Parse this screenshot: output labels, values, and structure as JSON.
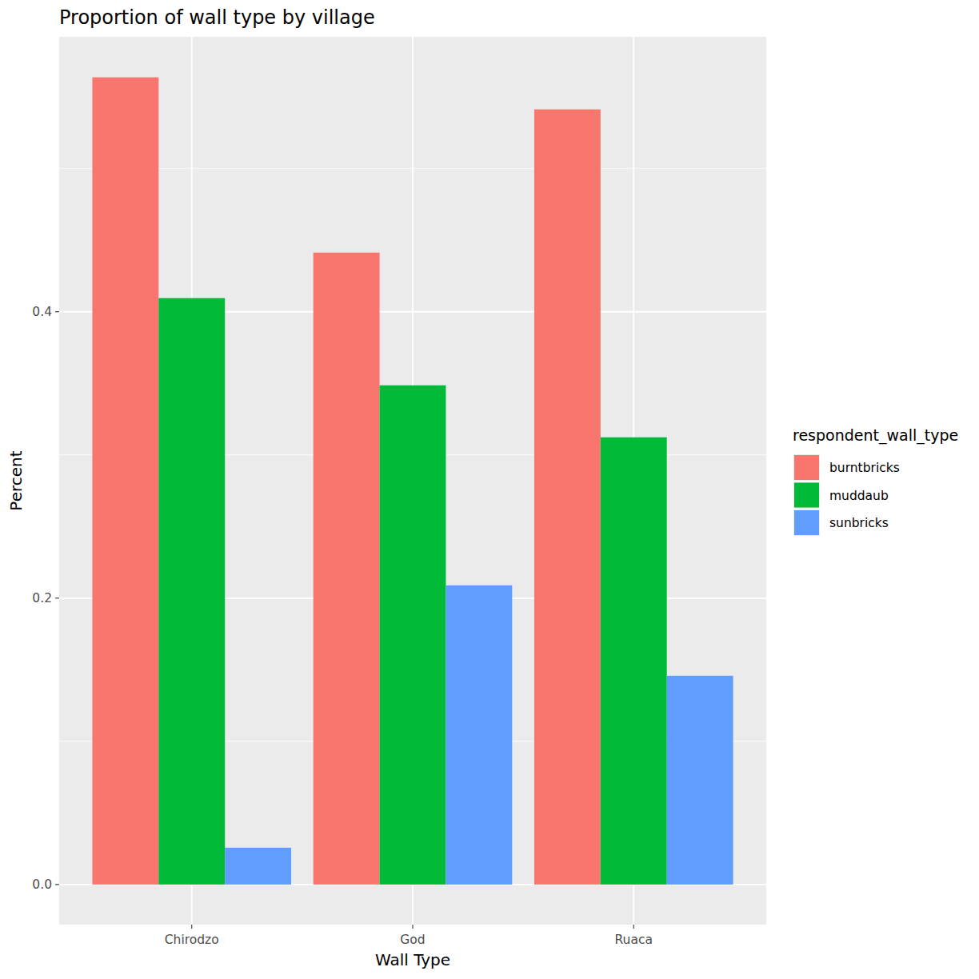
{
  "chart_data": {
    "type": "bar",
    "title": "Proportion of wall type by village",
    "x_label": "Wall Type",
    "y_label": "Percent",
    "legend_title": "respondent_wall_type",
    "categories": [
      "Chirodzo",
      "God",
      "Ruaca"
    ],
    "series": [
      {
        "name": "burntbricks",
        "color": "#F8766D",
        "values": [
          0.5637,
          0.4413,
          0.5413
        ]
      },
      {
        "name": "muddaub",
        "color": "#00BA38",
        "values": [
          0.4095,
          0.3486,
          0.3123
        ]
      },
      {
        "name": "sunbricks",
        "color": "#619CFF",
        "values": [
          0.0257,
          0.2089,
          0.1458
        ]
      }
    ],
    "ylim": [
      -0.028,
      0.592
    ],
    "yticks": [
      {
        "value": 0,
        "label": "0.0"
      },
      0.2,
      0.4
    ],
    "grid": true,
    "legend": "right"
  }
}
